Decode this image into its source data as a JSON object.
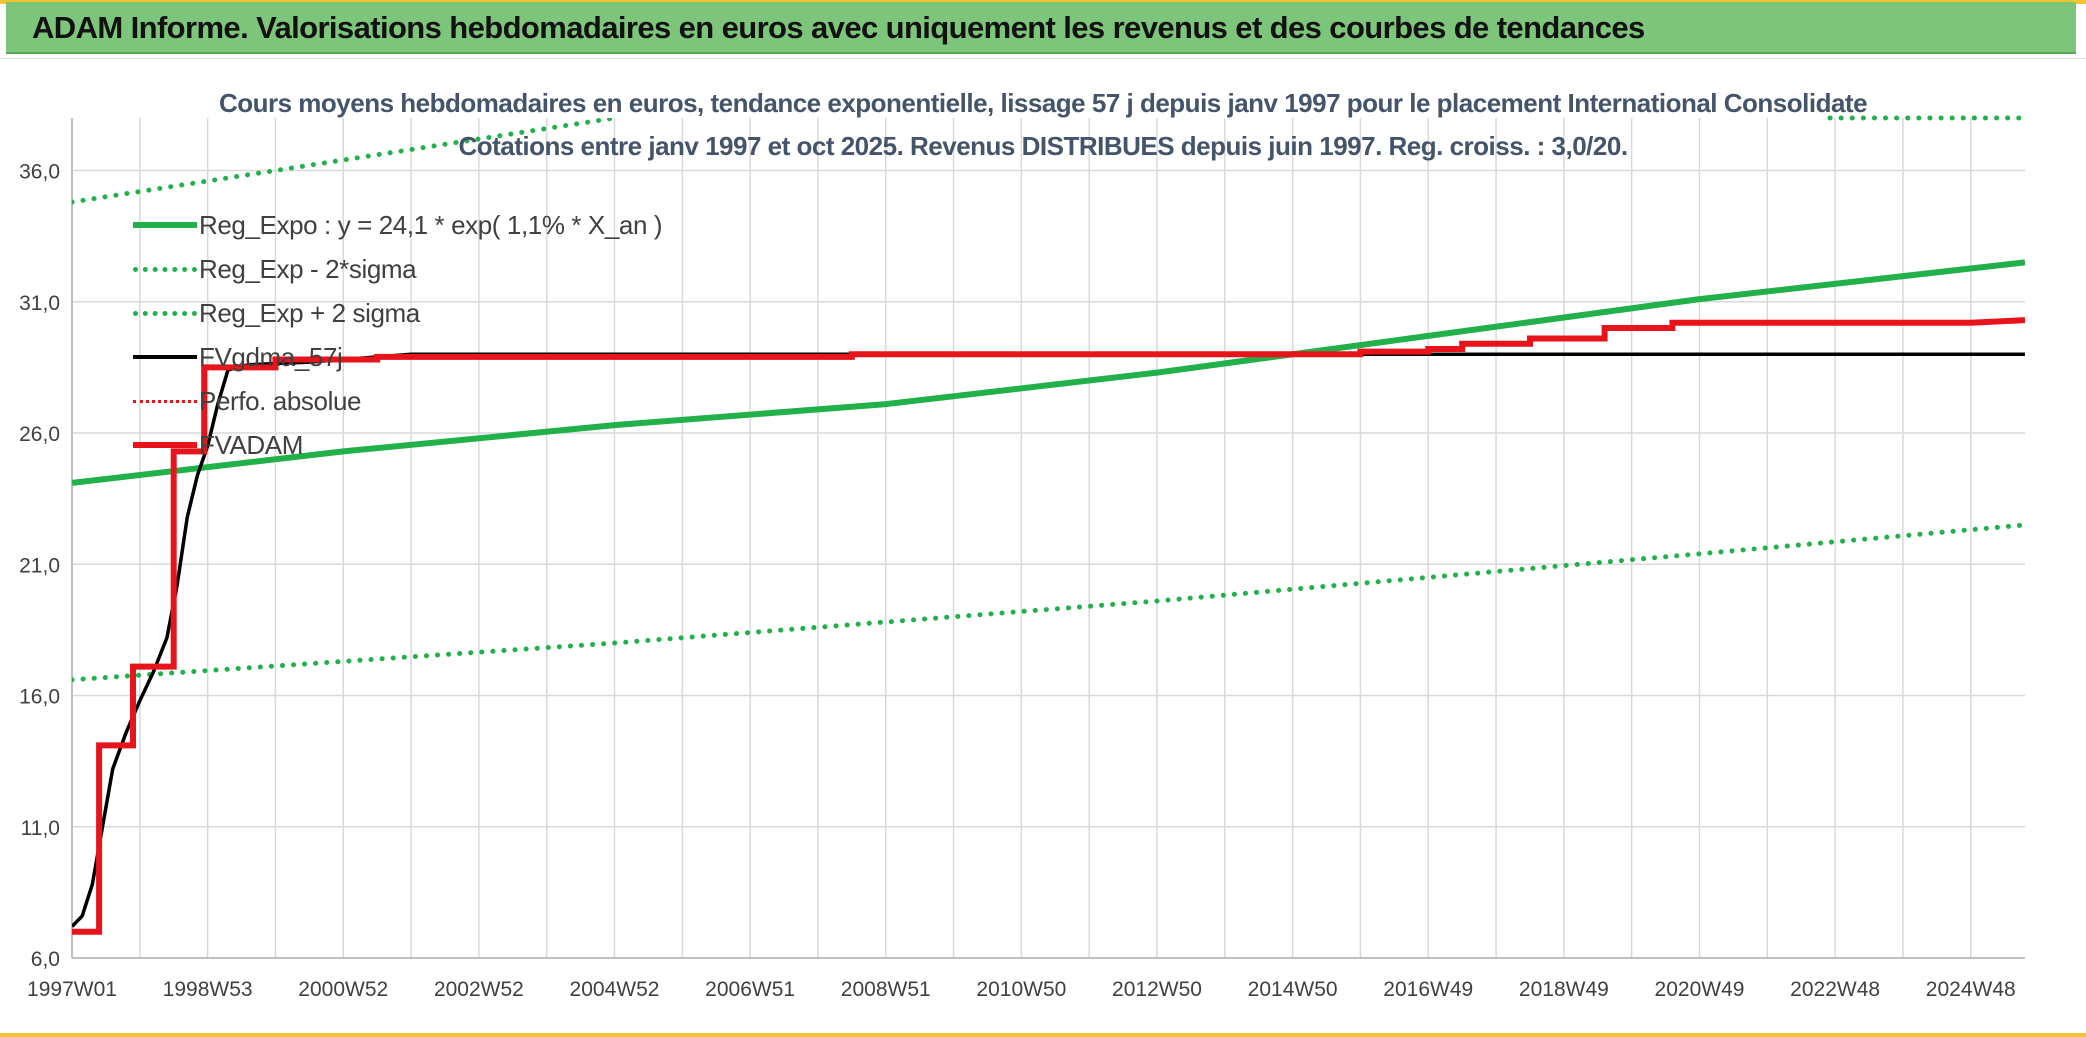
{
  "banner": {
    "title": "ADAM Informe. Valorisations hebdomadaires en euros avec uniquement les revenus et des courbes de tendances"
  },
  "colors": {
    "banner_bg": "#7cc57a",
    "accent": "#f4c430",
    "trend_green": "#22b04b",
    "fvadam_red": "#e8141c",
    "fvgdma_black": "#000000",
    "title_text": "#44546a",
    "grid": "#d9d9d9"
  },
  "chart_data": {
    "type": "line",
    "title": "Cours moyens hebdomadaires en euros, tendance exponentielle, lissage 57 j depuis janv 1997 pour le placement International Consolidate",
    "subtitle": "Cotations entre janv 1997 et oct 2025. Revenus DISTRIBUES depuis juin 1997. Reg. croiss. : 3,0/20.",
    "xlabel": "",
    "ylabel": "",
    "x_range": [
      1997.0,
      2025.8
    ],
    "ylim": [
      6.0,
      38.0
    ],
    "y_ticks": [
      "6,0",
      "11,0",
      "16,0",
      "21,0",
      "26,0",
      "31,0",
      "36,0"
    ],
    "x_ticks": [
      {
        "label": "1997W01",
        "x": 1997.0
      },
      {
        "label": "1998W53",
        "x": 1999.0
      },
      {
        "label": "2000W52",
        "x": 2001.0
      },
      {
        "label": "2002W52",
        "x": 2003.0
      },
      {
        "label": "2004W52",
        "x": 2005.0
      },
      {
        "label": "2006W51",
        "x": 2007.0
      },
      {
        "label": "2008W51",
        "x": 2009.0
      },
      {
        "label": "2010W50",
        "x": 2011.0
      },
      {
        "label": "2012W50",
        "x": 2013.0
      },
      {
        "label": "2014W50",
        "x": 2015.0
      },
      {
        "label": "2016W49",
        "x": 2017.0
      },
      {
        "label": "2018W49",
        "x": 2019.0
      },
      {
        "label": "2020W49",
        "x": 2021.0
      },
      {
        "label": "2022W48",
        "x": 2023.0
      },
      {
        "label": "2024W48",
        "x": 2025.0
      }
    ],
    "grid": true,
    "legend_position": "top-left",
    "series": [
      {
        "name": "Reg_Expo : y = 24,1 * exp( 1,1% *  X_an )",
        "style": "solid",
        "color": "#22b04b",
        "points": [
          [
            1997.0,
            24.1
          ],
          [
            2001.0,
            25.3
          ],
          [
            2005.0,
            26.3
          ],
          [
            2009.0,
            27.1
          ],
          [
            2013.0,
            28.3
          ],
          [
            2017.0,
            29.7
          ],
          [
            2021.0,
            31.1
          ],
          [
            2025.8,
            32.5
          ]
        ]
      },
      {
        "name": "Reg_Exp - 2*sigma",
        "style": "dotted",
        "color": "#22b04b",
        "points": [
          [
            1997.0,
            16.6
          ],
          [
            2001.0,
            17.3
          ],
          [
            2005.0,
            18.0
          ],
          [
            2009.0,
            18.8
          ],
          [
            2013.0,
            19.6
          ],
          [
            2017.0,
            20.5
          ],
          [
            2021.0,
            21.4
          ],
          [
            2025.8,
            22.5
          ]
        ]
      },
      {
        "name": "Reg_Exp + 2 sigma",
        "style": "dotted",
        "color": "#22b04b",
        "points": [
          [
            1997.0,
            34.8
          ],
          [
            2001.0,
            36.4
          ],
          [
            2005.0,
            38.0
          ]
        ]
      },
      {
        "name": "FVgdma_57j",
        "style": "solid",
        "color": "#000000",
        "points": [
          [
            1997.0,
            7.2
          ],
          [
            1997.15,
            7.6
          ],
          [
            1997.3,
            8.8
          ],
          [
            1997.45,
            11.0
          ],
          [
            1997.6,
            13.2
          ],
          [
            1997.8,
            14.6
          ],
          [
            1998.0,
            15.8
          ],
          [
            1998.2,
            16.9
          ],
          [
            1998.4,
            18.2
          ],
          [
            1998.55,
            20.2
          ],
          [
            1998.7,
            22.8
          ],
          [
            1998.85,
            24.4
          ],
          [
            1999.0,
            25.5
          ],
          [
            1999.15,
            27.1
          ],
          [
            1999.3,
            28.4
          ],
          [
            1999.6,
            28.6
          ],
          [
            2000.5,
            28.7
          ],
          [
            2001.0,
            28.8
          ],
          [
            2002.0,
            29.0
          ],
          [
            2025.8,
            29.0
          ]
        ]
      },
      {
        "name": "Perfo. absolue",
        "style": "dotted",
        "color": "#e8141c",
        "points": []
      },
      {
        "name": "FVADAM",
        "style": "step",
        "color": "#e8141c",
        "points": [
          [
            1997.0,
            7.0
          ],
          [
            1997.4,
            7.0
          ],
          [
            1997.4,
            14.1
          ],
          [
            1997.9,
            14.1
          ],
          [
            1997.9,
            17.1
          ],
          [
            1998.5,
            17.1
          ],
          [
            1998.5,
            25.3
          ],
          [
            1998.95,
            25.3
          ],
          [
            1998.95,
            28.5
          ],
          [
            2000.0,
            28.5
          ],
          [
            2000.0,
            28.8
          ],
          [
            2001.5,
            28.8
          ],
          [
            2001.5,
            28.9
          ],
          [
            2008.5,
            28.9
          ],
          [
            2008.5,
            29.0
          ],
          [
            2016.0,
            29.0
          ],
          [
            2016.0,
            29.1
          ],
          [
            2017.0,
            29.1
          ],
          [
            2017.0,
            29.2
          ],
          [
            2017.5,
            29.2
          ],
          [
            2017.5,
            29.4
          ],
          [
            2018.5,
            29.4
          ],
          [
            2018.5,
            29.6
          ],
          [
            2019.6,
            29.6
          ],
          [
            2019.6,
            30.0
          ],
          [
            2020.6,
            30.0
          ],
          [
            2020.6,
            30.2
          ],
          [
            2025.0,
            30.2
          ],
          [
            2025.8,
            30.3
          ]
        ]
      }
    ]
  }
}
